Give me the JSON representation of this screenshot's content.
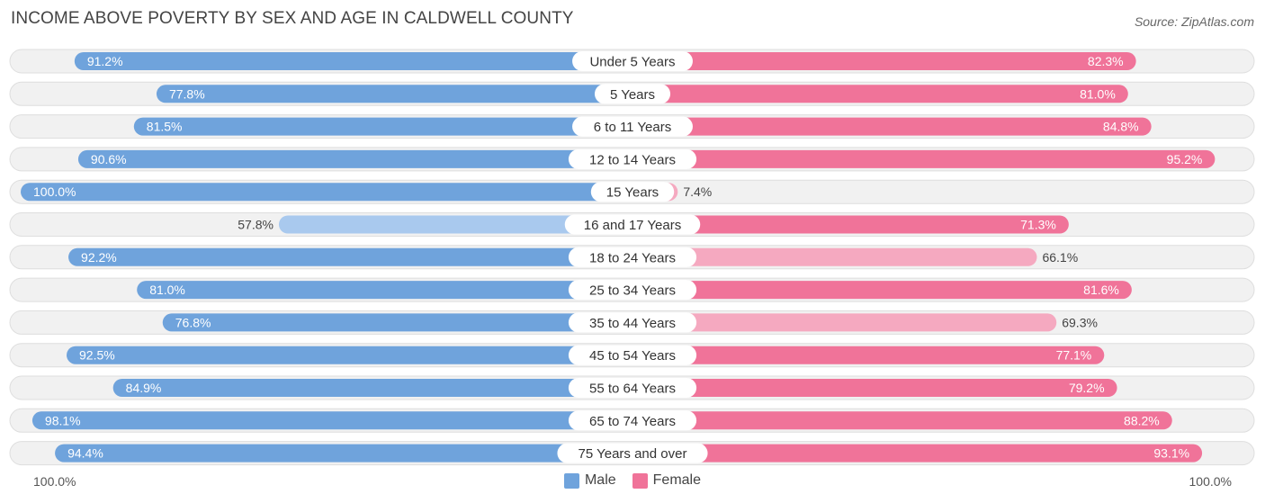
{
  "title": "INCOME ABOVE POVERTY BY SEX AND AGE IN CALDWELL COUNTY",
  "source": "Source: ZipAtlas.com",
  "colors": {
    "male_strong": "#6fa3dc",
    "male_light": "#a9c9ee",
    "female_strong": "#f07399",
    "female_light": "#f5a9c0",
    "row_bg": "#f1f1f1",
    "row_border": "#dedede"
  },
  "legend": {
    "male": "Male",
    "female": "Female"
  },
  "axis": {
    "left_label": "100.0%",
    "right_label": "100.0%"
  },
  "chart_data": {
    "type": "bar",
    "orientation": "horizontal-diverging",
    "title": "INCOME ABOVE POVERTY BY SEX AND AGE IN CALDWELL COUNTY",
    "categories": [
      "Under 5 Years",
      "5 Years",
      "6 to 11 Years",
      "12 to 14 Years",
      "15 Years",
      "16 and 17 Years",
      "18 to 24 Years",
      "25 to 34 Years",
      "35 to 44 Years",
      "45 to 54 Years",
      "55 to 64 Years",
      "65 to 74 Years",
      "75 Years and over"
    ],
    "series": [
      {
        "name": "Male",
        "values": [
          91.2,
          77.8,
          81.5,
          90.6,
          100.0,
          57.8,
          92.2,
          81.0,
          76.8,
          92.5,
          84.9,
          98.1,
          94.4
        ],
        "labels": [
          "91.2%",
          "77.8%",
          "81.5%",
          "90.6%",
          "100.0%",
          "57.8%",
          "92.2%",
          "81.0%",
          "76.8%",
          "92.5%",
          "84.9%",
          "98.1%",
          "94.4%"
        ]
      },
      {
        "name": "Female",
        "values": [
          82.3,
          81.0,
          84.8,
          95.2,
          7.4,
          71.3,
          66.1,
          81.6,
          69.3,
          77.1,
          79.2,
          88.2,
          93.1
        ],
        "labels": [
          "82.3%",
          "81.0%",
          "84.8%",
          "95.2%",
          "7.4%",
          "71.3%",
          "66.1%",
          "81.6%",
          "69.3%",
          "77.1%",
          "79.2%",
          "88.2%",
          "93.1%"
        ]
      }
    ],
    "xlim": [
      0,
      100
    ],
    "legend_position": "bottom-center"
  }
}
